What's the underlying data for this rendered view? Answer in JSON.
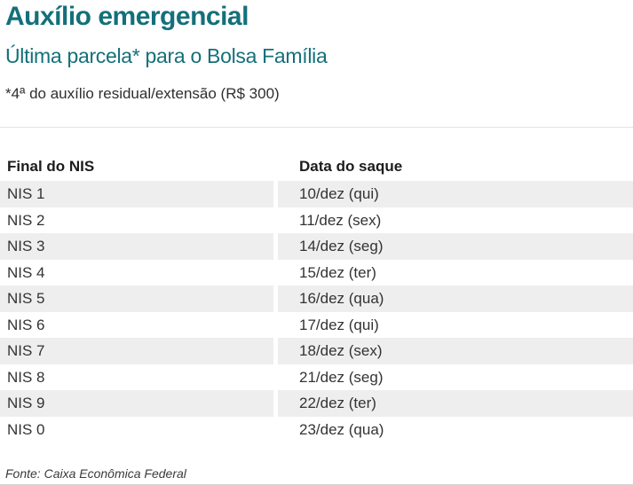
{
  "page": {
    "title": "Auxílio emergencial",
    "subtitle": "Última parcela* para o Bolsa Família",
    "note": "*4ª do auxílio residual/extensão (R$ 300)",
    "source": "Fonte: Caixa Econômica Federal"
  },
  "colors": {
    "accent": "#14707a",
    "stripe": "#eeeeee"
  },
  "table": {
    "columns": {
      "nis": "Final do NIS",
      "date": "Data do saque"
    },
    "rows": [
      {
        "nis": "NIS 1",
        "date": "10/dez (qui)"
      },
      {
        "nis": "NIS 2",
        "date": "11/dez (sex)"
      },
      {
        "nis": "NIS 3",
        "date": "14/dez (seg)"
      },
      {
        "nis": "NIS 4",
        "date": "15/dez (ter)"
      },
      {
        "nis": "NIS 5",
        "date": "16/dez (qua)"
      },
      {
        "nis": "NIS 6",
        "date": "17/dez (qui)"
      },
      {
        "nis": "NIS 7",
        "date": "18/dez (sex)"
      },
      {
        "nis": "NIS 8",
        "date": "21/dez (seg)"
      },
      {
        "nis": "NIS 9",
        "date": "22/dez (ter)"
      },
      {
        "nis": "NIS 0",
        "date": "23/dez (qua)"
      }
    ]
  },
  "chart_data": {
    "type": "table",
    "title": "Auxílio emergencial",
    "subtitle": "Última parcela* para o Bolsa Família",
    "note": "*4ª do auxílio residual/extensão (R$ 300)",
    "columns": [
      "Final do NIS",
      "Data do saque"
    ],
    "rows": [
      [
        "NIS 1",
        "10/dez (qui)"
      ],
      [
        "NIS 2",
        "11/dez (sex)"
      ],
      [
        "NIS 3",
        "14/dez (seg)"
      ],
      [
        "NIS 4",
        "15/dez (ter)"
      ],
      [
        "NIS 5",
        "16/dez (qua)"
      ],
      [
        "NIS 6",
        "17/dez (qui)"
      ],
      [
        "NIS 7",
        "18/dez (sex)"
      ],
      [
        "NIS 8",
        "21/dez (seg)"
      ],
      [
        "NIS 9",
        "22/dez (ter)"
      ],
      [
        "NIS 0",
        "23/dez (qua)"
      ]
    ],
    "source": "Fonte: Caixa Econômica Federal",
    "layout": {
      "striped_rows": "odd",
      "stripe_color": "#eeeeee",
      "accent_color": "#14707a"
    }
  }
}
